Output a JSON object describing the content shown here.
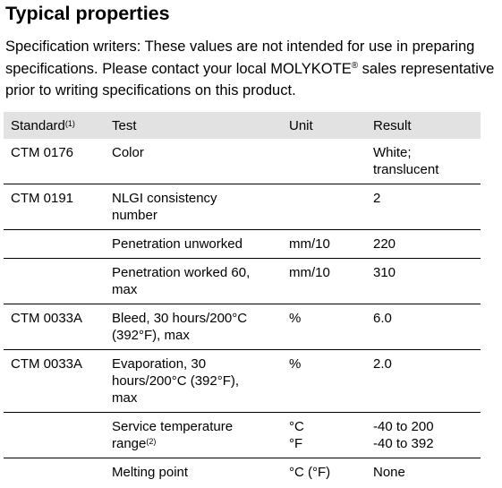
{
  "title": "Typical properties",
  "intro_text": "Specification writers: These values are not intended for use in preparing specifications. Please contact your local MOLYKOTE",
  "intro_reg": "®",
  "intro_tail": " sales representative prior to writing specifications on this product.",
  "table": {
    "headers": {
      "standard": "Standard",
      "standard_note": "(1)",
      "test": "Test",
      "unit": "Unit",
      "result": "Result"
    },
    "rows": [
      {
        "standard": "CTM 0176",
        "test": "Color",
        "unit": "",
        "result_1": "White;",
        "result_2": "translucent"
      },
      {
        "standard": "CTM 0191",
        "test_1": "NLGI consistency",
        "test_2": "number",
        "unit": "",
        "result": "2"
      },
      {
        "standard": "",
        "test": "Penetration unworked",
        "unit": "mm/10",
        "result": "220"
      },
      {
        "standard": "",
        "test_1": "Penetration worked 60,",
        "test_2": "max",
        "unit": "mm/10",
        "result": "310"
      },
      {
        "standard": "CTM 0033A",
        "test_1": "Bleed, 30 hours/200°C",
        "test_2": "(392°F), max",
        "unit": "%",
        "result": "6.0"
      },
      {
        "standard": "CTM 0033A",
        "test_1": "Evaporation, 30",
        "test_2": "hours/200°C (392°F),",
        "test_3": "max",
        "unit": "%",
        "result": "2.0"
      },
      {
        "standard": "",
        "test_1": "Service temperature",
        "test_2": "range",
        "test_note": "(2)",
        "unit_1": "°C",
        "unit_2": "°F",
        "result_1": "-40 to 200",
        "result_2": "-40 to 392"
      },
      {
        "standard": "",
        "test": "Melting point",
        "unit": "°C (°F)",
        "result": "None"
      }
    ]
  }
}
